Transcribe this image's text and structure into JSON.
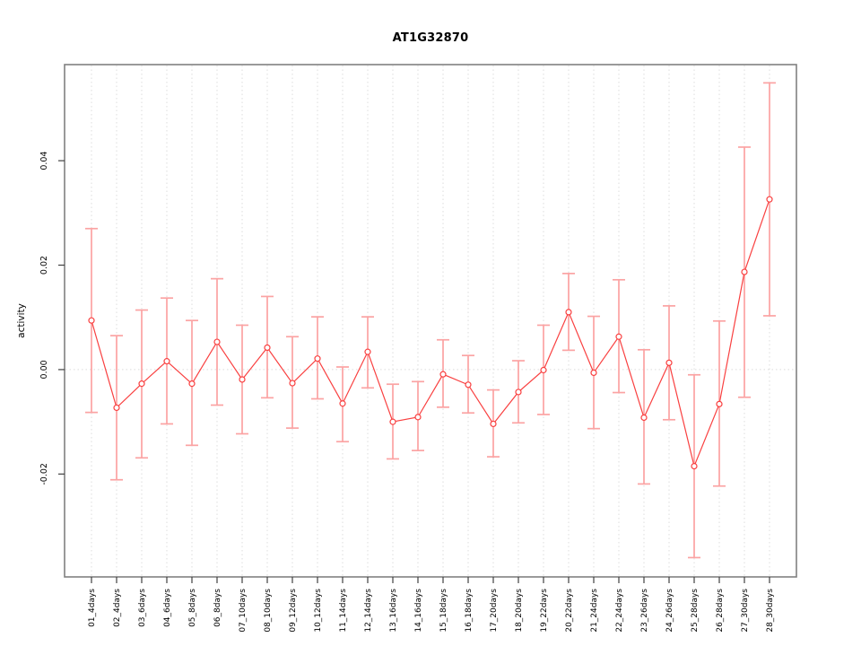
{
  "page": {
    "background": "#ffffff"
  },
  "chart_data": {
    "type": "line",
    "title": "AT1G32870",
    "xlabel": "",
    "ylabel": "activity",
    "legend": "none",
    "grid": "vertical dotted gridline at every category; dotted horizontal line at y=0",
    "marker": "open-circle",
    "error_bars": true,
    "categories": [
      "01_4days",
      "02_4days",
      "03_6days",
      "04_6days",
      "05_8days",
      "06_8days",
      "07_10days",
      "08_10days",
      "09_12days",
      "10_12days",
      "11_14days",
      "12_14days",
      "13_16days",
      "14_16days",
      "15_18days",
      "16_18days",
      "17_20days",
      "18_20days",
      "19_22days",
      "20_22days",
      "21_24days",
      "22_24days",
      "23_26days",
      "24_26days",
      "25_28days",
      "26_28days",
      "27_30days",
      "28_30days"
    ],
    "series": [
      {
        "name": "activity",
        "values": [
          0.0094,
          -0.0073,
          -0.0027,
          0.0016,
          -0.0027,
          0.0053,
          -0.0019,
          0.0042,
          -0.0026,
          0.0021,
          -0.0065,
          0.0034,
          -0.01,
          -0.0091,
          -0.0009,
          -0.0029,
          -0.0104,
          -0.0043,
          -0.0001,
          0.011,
          -0.0006,
          0.0063,
          -0.0092,
          0.0013,
          -0.0185,
          -0.0066,
          0.0187,
          0.0326
        ],
        "error_low": [
          -0.0082,
          -0.0211,
          -0.0169,
          -0.0104,
          -0.0145,
          -0.0068,
          -0.0123,
          -0.0054,
          -0.0112,
          -0.0056,
          -0.0138,
          -0.0035,
          -0.0171,
          -0.0155,
          -0.0072,
          -0.0083,
          -0.0167,
          -0.0102,
          -0.0086,
          0.0037,
          -0.0113,
          -0.0044,
          -0.0219,
          -0.0096,
          -0.036,
          -0.0223,
          -0.0053,
          0.0103
        ],
        "error_high": [
          0.027,
          0.0065,
          0.0114,
          0.0137,
          0.0094,
          0.0174,
          0.0085,
          0.014,
          0.0063,
          0.0101,
          0.0005,
          0.0101,
          -0.0028,
          -0.0023,
          0.0057,
          0.0027,
          -0.0039,
          0.0017,
          0.0085,
          0.0184,
          0.0102,
          0.0172,
          0.0038,
          0.0122,
          -0.001,
          0.0093,
          0.0426,
          0.0549
        ]
      }
    ],
    "yticks": [
      -0.02,
      0.0,
      0.02,
      0.04
    ],
    "ytick_labels": [
      "-0.02",
      "0.00",
      "0.02",
      "0.04"
    ],
    "ylim": [
      -0.0397,
      0.0584
    ],
    "colors": {
      "line": "#f94040",
      "point": "#f94040",
      "error_bar": "#fba3a3",
      "grid": "#dcdcdc",
      "box": "#808080",
      "tick": "#404040",
      "text": "#000000"
    }
  }
}
